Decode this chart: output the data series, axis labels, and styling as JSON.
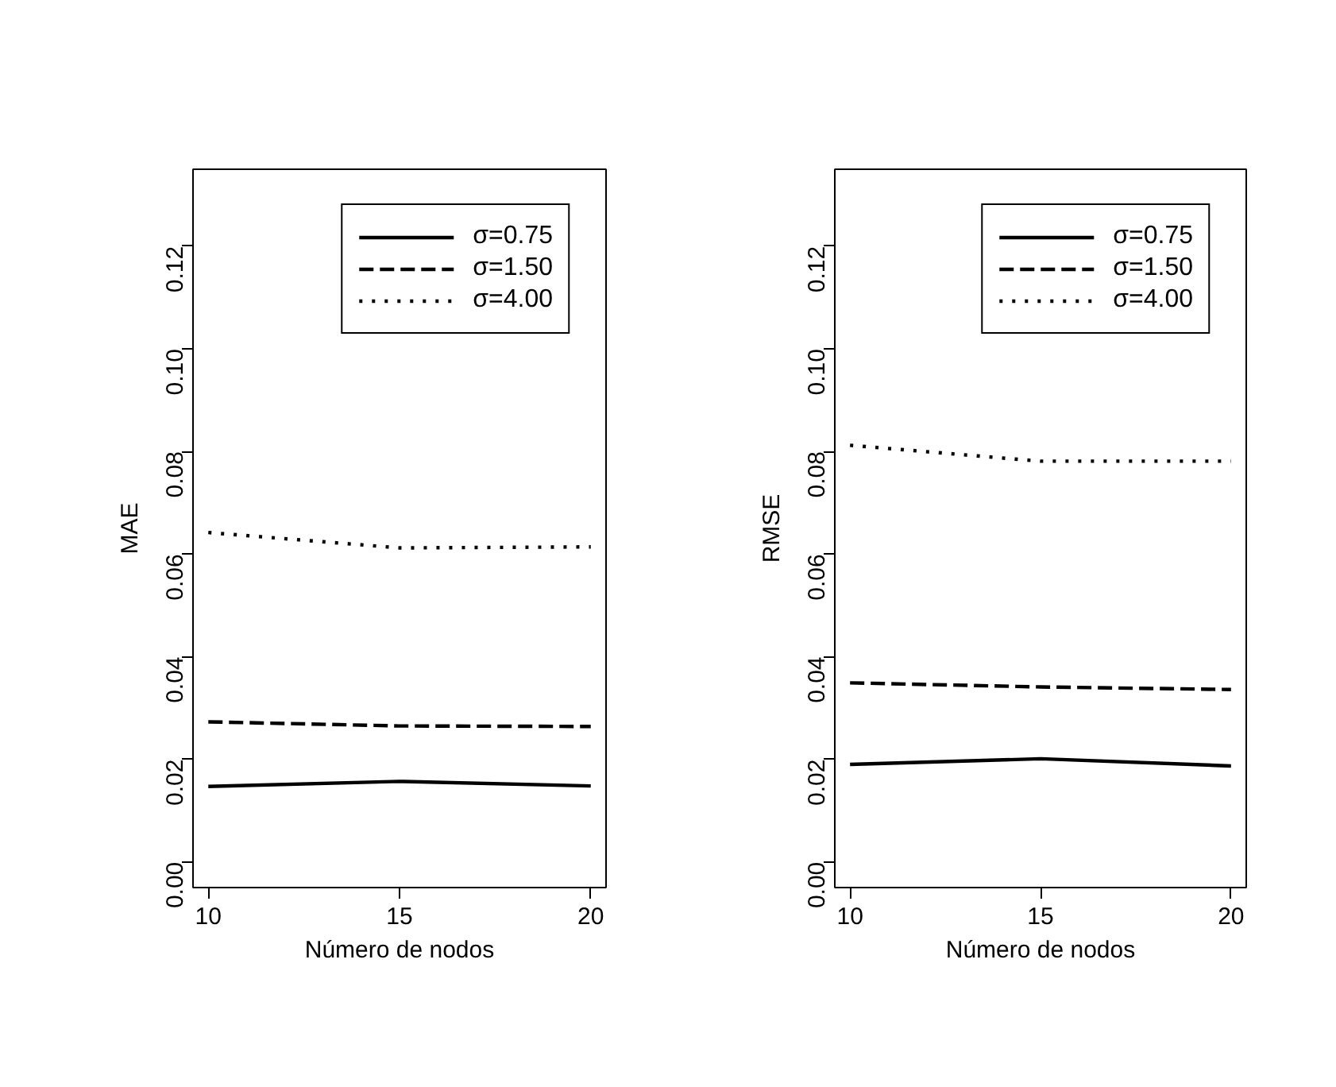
{
  "chart_data": [
    {
      "type": "line",
      "xlabel": "Número de nodos",
      "ylabel": "MAE",
      "x": [
        10,
        15,
        20
      ],
      "series": [
        {
          "name": "σ=0.75",
          "color": "#000000",
          "line_style": "solid",
          "values": [
            0.0147,
            0.0157,
            0.0148
          ]
        },
        {
          "name": "σ=1.50",
          "color": "#000000",
          "line_style": "dashed",
          "values": [
            0.0273,
            0.0265,
            0.0264
          ]
        },
        {
          "name": "σ=4.00",
          "color": "#000000",
          "line_style": "dotted",
          "values": [
            0.0642,
            0.0612,
            0.0614
          ]
        }
      ],
      "xlim": [
        9.6,
        20.4
      ],
      "ylim": [
        -0.005,
        0.135
      ],
      "xticks": [
        10,
        15,
        20
      ],
      "yticks": [
        {
          "value": 0,
          "label": "0.00"
        },
        {
          "value": 0.02,
          "label": "0.02"
        },
        {
          "value": 0.04,
          "label": "0.04"
        },
        {
          "value": 0.06,
          "label": "0.06"
        },
        {
          "value": 0.08,
          "label": "0.08"
        },
        {
          "value": 0.1,
          "label": "0.10"
        },
        {
          "value": 0.12,
          "label": "0.12"
        }
      ],
      "grid": false,
      "legend": "top right",
      "marker": "none"
    },
    {
      "type": "line",
      "xlabel": "Número de nodos",
      "ylabel": "RMSE",
      "x": [
        10,
        15,
        20
      ],
      "series": [
        {
          "name": "σ=0.75",
          "color": "#000000",
          "line_style": "solid",
          "values": [
            0.019,
            0.0201,
            0.0187
          ]
        },
        {
          "name": "σ=1.50",
          "color": "#000000",
          "line_style": "dashed",
          "values": [
            0.0349,
            0.0341,
            0.0336
          ]
        },
        {
          "name": "σ=4.00",
          "color": "#000000",
          "line_style": "dotted",
          "values": [
            0.0812,
            0.0781,
            0.0781
          ]
        }
      ],
      "xlim": [
        9.6,
        20.4
      ],
      "ylim": [
        -0.005,
        0.135
      ],
      "xticks": [
        10,
        15,
        20
      ],
      "yticks": [
        {
          "value": 0,
          "label": "0.00"
        },
        {
          "value": 0.02,
          "label": "0.02"
        },
        {
          "value": 0.04,
          "label": "0.04"
        },
        {
          "value": 0.06,
          "label": "0.06"
        },
        {
          "value": 0.08,
          "label": "0.08"
        },
        {
          "value": 0.1,
          "label": "0.10"
        },
        {
          "value": 0.12,
          "label": "0.12"
        }
      ],
      "grid": false,
      "legend": "top right",
      "marker": "none"
    }
  ]
}
